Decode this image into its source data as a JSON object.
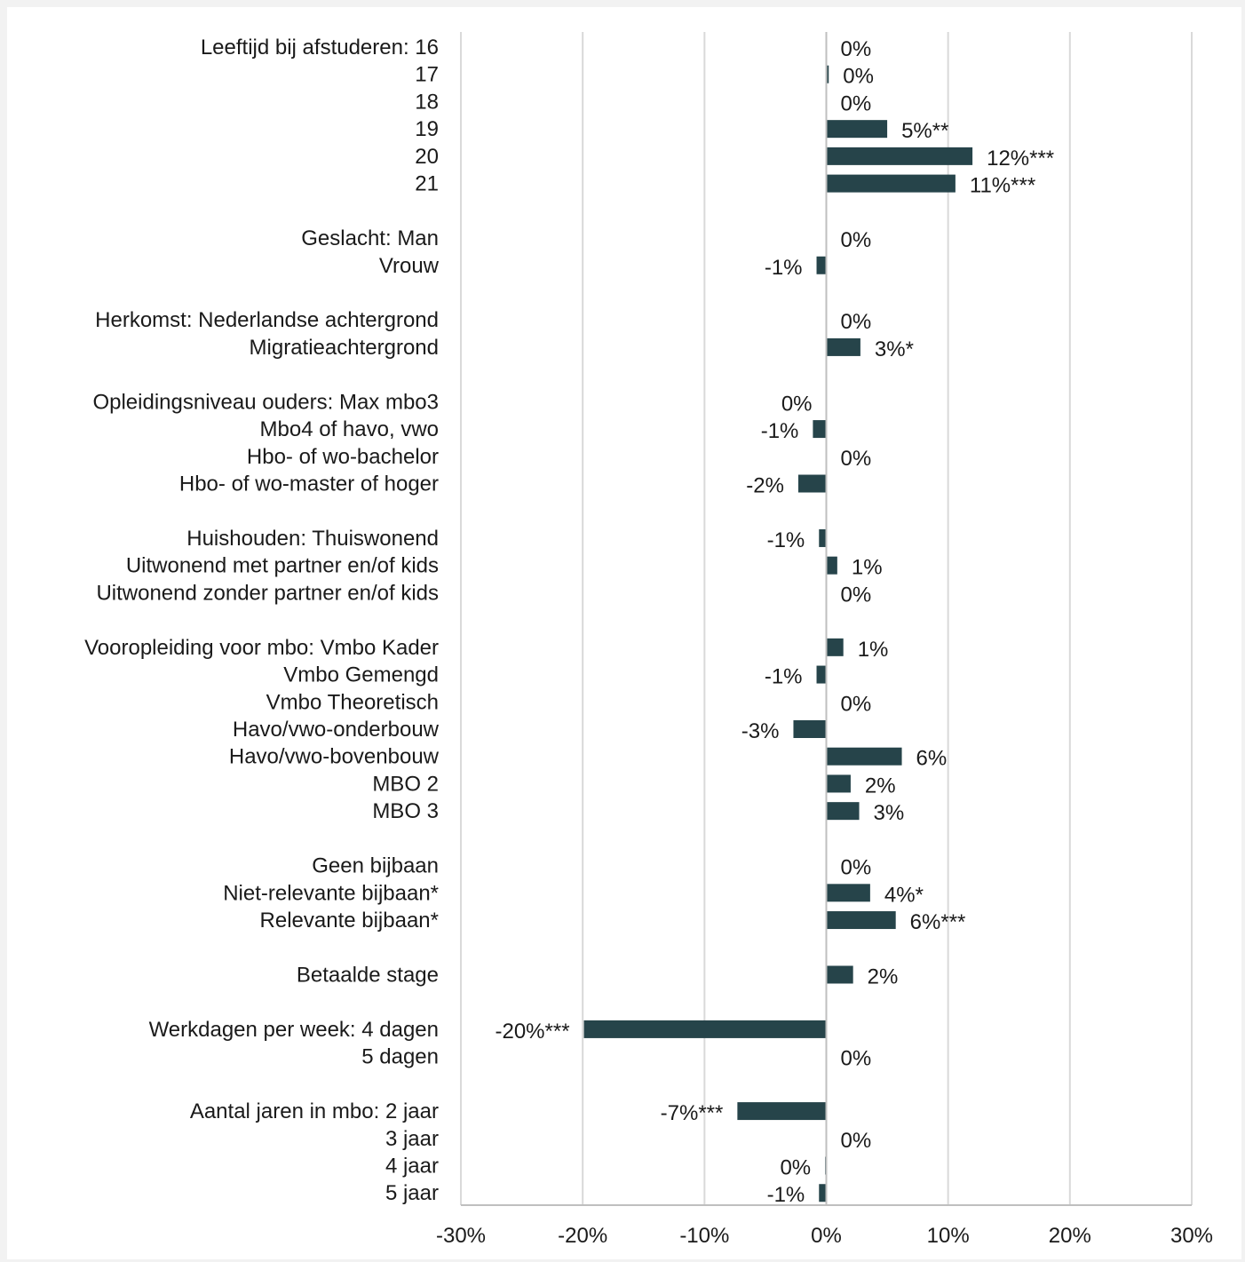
{
  "chart_data": {
    "type": "bar",
    "orientation": "horizontal",
    "grid": true,
    "xlim": [
      -30,
      30
    ],
    "x_ticks": [
      "-30%",
      "-20%",
      "-10%",
      "0%",
      "10%",
      "20%",
      "30%"
    ],
    "bar_color": "#26444a",
    "categories": [
      {
        "label": "Leeftijd bij afstuderen: 16",
        "value": 0,
        "data_label": "0%"
      },
      {
        "label": "17",
        "value": 0.2,
        "data_label": "0%"
      },
      {
        "label": "18",
        "value": 0,
        "data_label": "0%"
      },
      {
        "label": "19",
        "value": 5,
        "data_label": "5%**"
      },
      {
        "label": "20",
        "value": 12,
        "data_label": "12%***"
      },
      {
        "label": "21",
        "value": 10.6,
        "data_label": "11%***"
      },
      {
        "label": "",
        "gap": true
      },
      {
        "label": "Geslacht: Man",
        "value": 0,
        "data_label": "0%"
      },
      {
        "label": "Vrouw",
        "value": -0.8,
        "data_label": "-1%"
      },
      {
        "label": "",
        "gap": true
      },
      {
        "label": "Herkomst: Nederlandse achtergrond",
        "value": 0,
        "data_label": "0%"
      },
      {
        "label": "Migratieachtergrond",
        "value": 2.8,
        "data_label": "3%*"
      },
      {
        "label": "",
        "gap": true
      },
      {
        "label": "Opleidingsniveau ouders: Max mbo3",
        "value": 0,
        "data_label": "0%",
        "label_side": "left"
      },
      {
        "label": "Mbo4 of havo, vwo",
        "value": -1.1,
        "data_label": "-1%"
      },
      {
        "label": "Hbo- of wo-bachelor",
        "value": 0,
        "data_label": "0%"
      },
      {
        "label": "Hbo- of wo-master of hoger",
        "value": -2.3,
        "data_label": "-2%"
      },
      {
        "label": "",
        "gap": true
      },
      {
        "label": "Huishouden: Thuiswonend",
        "value": -0.6,
        "data_label": "-1%"
      },
      {
        "label": "Uitwonend met partner en/of kids",
        "value": 0.9,
        "data_label": "1%"
      },
      {
        "label": "Uitwonend zonder partner en/of kids",
        "value": 0,
        "data_label": "0%"
      },
      {
        "label": "",
        "gap": true
      },
      {
        "label": "Vooropleiding voor mbo: Vmbo Kader",
        "value": 1.4,
        "data_label": "1%"
      },
      {
        "label": "Vmbo Gemengd",
        "value": -0.8,
        "data_label": "-1%"
      },
      {
        "label": "Vmbo Theoretisch",
        "value": 0,
        "data_label": "0%"
      },
      {
        "label": "Havo/vwo-onderbouw",
        "value": -2.7,
        "data_label": "-3%"
      },
      {
        "label": "Havo/vwo-bovenbouw",
        "value": 6.2,
        "data_label": "6%"
      },
      {
        "label": "MBO 2",
        "value": 2,
        "data_label": "2%"
      },
      {
        "label": "MBO 3",
        "value": 2.7,
        "data_label": "3%"
      },
      {
        "label": "",
        "gap": true
      },
      {
        "label": "Geen bijbaan",
        "value": 0,
        "data_label": "0%"
      },
      {
        "label": "Niet-relevante bijbaan*",
        "value": 3.6,
        "data_label": "4%*"
      },
      {
        "label": "Relevante bijbaan*",
        "value": 5.7,
        "data_label": "6%***"
      },
      {
        "label": "",
        "gap": true
      },
      {
        "label": "Betaalde stage",
        "value": 2.2,
        "data_label": "2%"
      },
      {
        "label": "",
        "gap": true
      },
      {
        "label": "Werkdagen per week: 4 dagen",
        "value": -19.9,
        "data_label": "-20%***"
      },
      {
        "label": "5 dagen",
        "value": 0,
        "data_label": "0%"
      },
      {
        "label": "",
        "gap": true
      },
      {
        "label": "Aantal jaren in mbo: 2 jaar",
        "value": -7.3,
        "data_label": "-7%***"
      },
      {
        "label": "3 jaar",
        "value": 0,
        "data_label": "0%"
      },
      {
        "label": "4 jaar",
        "value": -0.1,
        "data_label": "0%",
        "label_side": "left"
      },
      {
        "label": "5 jaar",
        "value": -0.6,
        "data_label": "-1%"
      }
    ]
  }
}
